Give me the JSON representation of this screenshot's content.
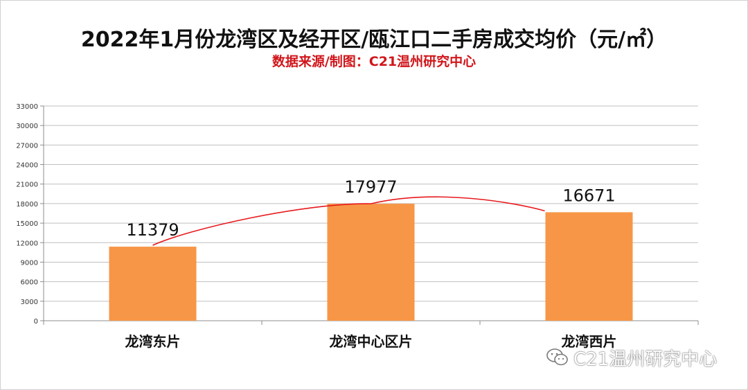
{
  "title": "2022年1月份龙湾区及经开区/瓯江口二手房成交均价（元/㎡）",
  "subtitle": "数据来源/制图：C21温州研究中心",
  "watermark": "C21温州研究中心",
  "colors": {
    "bar": "#f79646",
    "trend_line": "#e8191d",
    "grid": "#bfbfbf",
    "title": "#111111",
    "subtitle": "#d0161b"
  },
  "chart_data": {
    "type": "bar",
    "categories": [
      "龙湾东片",
      "龙湾中心区片",
      "龙湾西片"
    ],
    "values": [
      11379,
      17977,
      16671
    ],
    "data_labels": [
      "11379",
      "17977",
      "16671"
    ],
    "ylim": [
      0,
      33000
    ],
    "yticks": [
      0,
      3000,
      6000,
      9000,
      12000,
      15000,
      18000,
      21000,
      24000,
      27000,
      30000,
      33000
    ],
    "grid": true,
    "trendline": "curved line connecting bar tops",
    "xlabel": "",
    "ylabel": ""
  }
}
